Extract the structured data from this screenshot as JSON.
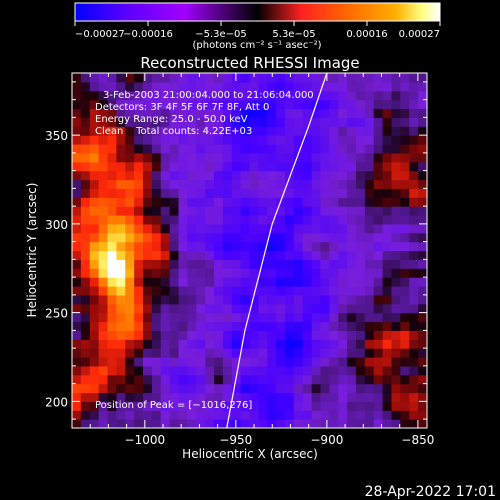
{
  "chart_data": {
    "type": "heatmap",
    "title": "Reconstructed RHESSI Image",
    "xlabel": "Heliocentric X (arcsec)",
    "ylabel": "Heliocentric Y (arcsec)",
    "xlim": [
      -1040,
      -845
    ],
    "ylim": [
      185,
      385
    ],
    "x_ticks": [
      {
        "value": -1000,
        "label": "−1000"
      },
      {
        "value": -950,
        "label": "−950"
      },
      {
        "value": -900,
        "label": "−900"
      },
      {
        "value": -850,
        "label": "−850"
      }
    ],
    "y_ticks": [
      {
        "value": 200,
        "label": "200"
      },
      {
        "value": 250,
        "label": "250"
      },
      {
        "value": 300,
        "label": "300"
      },
      {
        "value": 350,
        "label": "350"
      }
    ],
    "colorbar": {
      "min": -0.00027,
      "max": 0.00027,
      "tick_labels": [
        "−0.00027",
        "−0.00016",
        "−5.3e−05",
        "5.3e−05",
        "0.00016",
        "0.00027"
      ],
      "unit_label": "(photons cm⁻² s⁻¹ asec⁻²)",
      "colors": [
        "#0000ff",
        "#5a00ff",
        "#a000ff",
        "#ff2020",
        "#ff6a00",
        "#ffb000",
        "#ffff80",
        "#ffffff"
      ]
    },
    "annotations": [
      "3-Feb-2003 21:00:04.000 to 21:06:04.000",
      "Detectors: 3F 4F 5F 6F 7F 8F, Att 0",
      "Energy Range: 25.0 - 50.0 keV",
      "Clean    Total counts: 4.22E+03"
    ],
    "peak_label": "Position of Peak = [−1016,276]",
    "peak_position": [
      -1016,
      276
    ],
    "limb_curve": [
      {
        "x": -955,
        "y": 185
      },
      {
        "x": -945,
        "y": 240
      },
      {
        "x": -930,
        "y": 300
      },
      {
        "x": -910,
        "y": 355
      },
      {
        "x": -900,
        "y": 385
      }
    ],
    "intensity_sources": [
      {
        "x": -1018,
        "y": 276,
        "sigma": 11,
        "amp": 1.0
      },
      {
        "x": -1022,
        "y": 300,
        "sigma": 14,
        "amp": 0.75
      },
      {
        "x": -1010,
        "y": 250,
        "sigma": 12,
        "amp": 0.7
      },
      {
        "x": -1005,
        "y": 325,
        "sigma": 10,
        "amp": 0.55
      },
      {
        "x": -1030,
        "y": 345,
        "sigma": 12,
        "amp": 0.55
      },
      {
        "x": -1030,
        "y": 215,
        "sigma": 12,
        "amp": 0.45
      },
      {
        "x": -990,
        "y": 285,
        "sigma": 9,
        "amp": 0.45
      },
      {
        "x": -870,
        "y": 235,
        "sigma": 12,
        "amp": 0.55
      },
      {
        "x": -862,
        "y": 325,
        "sigma": 10,
        "amp": 0.45
      },
      {
        "x": -855,
        "y": 200,
        "sigma": 10,
        "amp": 0.45
      },
      {
        "x": -900,
        "y": 210,
        "sigma": 8,
        "amp": 0.35
      },
      {
        "x": -960,
        "y": 215,
        "sigma": 7,
        "amp": 0.3
      },
      {
        "x": -945,
        "y": 320,
        "sigma": 8,
        "amp": 0.25
      }
    ],
    "grid": false
  },
  "timestamp": "28-Apr-2022 17:01"
}
